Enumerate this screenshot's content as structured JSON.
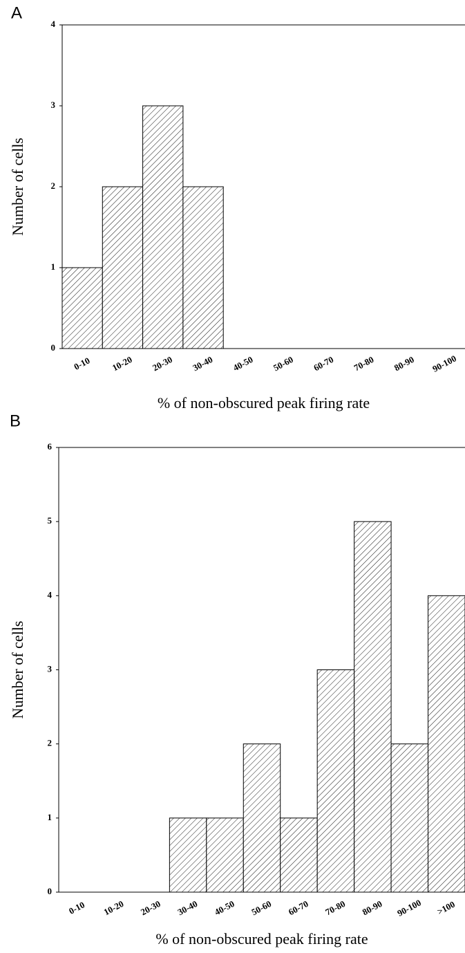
{
  "chart_data": [
    {
      "type": "bar",
      "panel": "A",
      "x_label": "% of non-obscured peak firing rate",
      "y_label": "Number of cells",
      "categories": [
        "0-10",
        "10-20",
        "20-30",
        "30-40",
        "40-50",
        "50-60",
        "60-70",
        "70-80",
        "80-90",
        "90-100"
      ],
      "values": [
        1,
        2,
        3,
        2,
        0,
        0,
        0,
        0,
        0,
        0
      ],
      "ylim": [
        0,
        4
      ],
      "yticks": [
        0,
        1,
        2,
        3,
        4
      ]
    },
    {
      "type": "bar",
      "panel": "B",
      "x_label": "% of non-obscured peak firing rate",
      "y_label": "Number of cells",
      "categories": [
        "0-10",
        "10-20",
        "20-30",
        "30-40",
        "40-50",
        "50-60",
        "60-70",
        "70-80",
        "80-90",
        "90-100",
        ">100"
      ],
      "values": [
        0,
        0,
        0,
        1,
        1,
        2,
        1,
        3,
        5,
        2,
        4
      ],
      "ylim": [
        0,
        6
      ],
      "yticks": [
        0,
        1,
        2,
        3,
        4,
        5,
        6
      ]
    }
  ]
}
